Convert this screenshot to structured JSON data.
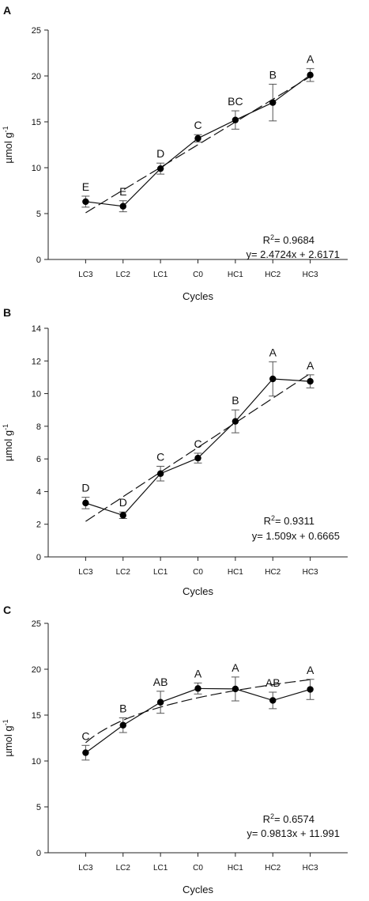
{
  "chart_data": [
    {
      "panel": "A",
      "type": "line",
      "categories": [
        "LC3",
        "LC2",
        "LC1",
        "C0",
        "HC1",
        "HC2",
        "HC3"
      ],
      "values": [
        6.3,
        5.8,
        9.9,
        13.2,
        15.2,
        17.1,
        20.1
      ],
      "errors": [
        0.6,
        0.6,
        0.6,
        0.4,
        1.0,
        2.0,
        0.7
      ],
      "letters": [
        "E",
        "E",
        "D",
        "C",
        "BC",
        "B",
        "A"
      ],
      "ylim": [
        0,
        25
      ],
      "yticks": [
        0,
        5,
        10,
        15,
        20,
        25
      ],
      "xlabel": "Cycles",
      "ylabel": "µmol g",
      "ylabel_sup": "-1",
      "fit": {
        "slope": 2.4724,
        "intercept": 2.6171
      },
      "r2_label": "R",
      "r2_sup": "2",
      "r2_value": "= 0.9684",
      "equation": "y= 2.4724x + 2.6171"
    },
    {
      "panel": "B",
      "type": "line",
      "categories": [
        "LC3",
        "LC2",
        "LC1",
        "C0",
        "HC1",
        "HC2",
        "HC3"
      ],
      "values": [
        3.3,
        2.55,
        5.1,
        6.05,
        8.3,
        10.9,
        10.75
      ],
      "errors": [
        0.35,
        0.2,
        0.45,
        0.3,
        0.7,
        1.05,
        0.4
      ],
      "letters": [
        "D",
        "D",
        "C",
        "C",
        "B",
        "A",
        "A"
      ],
      "ylim": [
        0,
        14
      ],
      "yticks": [
        0,
        2,
        4,
        6,
        8,
        10,
        12,
        14
      ],
      "xlabel": "Cycles",
      "ylabel": "µmol g",
      "ylabel_sup": "-1",
      "fit": {
        "slope": 1.509,
        "intercept": 0.6665
      },
      "r2_label": "R",
      "r2_sup": "2",
      "r2_value": "= 0.9311",
      "equation": "y= 1.509x + 0.6665"
    },
    {
      "panel": "C",
      "type": "line",
      "categories": [
        "LC3",
        "LC2",
        "LC1",
        "C0",
        "HC1",
        "HC2",
        "HC3"
      ],
      "values": [
        10.9,
        13.9,
        16.4,
        17.9,
        17.85,
        16.6,
        17.8
      ],
      "errors": [
        0.8,
        0.8,
        1.2,
        0.6,
        1.3,
        0.9,
        1.1
      ],
      "letters": [
        "C",
        "B",
        "AB",
        "A",
        "A",
        "AB",
        "A"
      ],
      "ylim": [
        0,
        25
      ],
      "yticks": [
        0,
        5,
        10,
        15,
        20,
        25
      ],
      "xlabel": "Cycles",
      "ylabel": "µmol g",
      "ylabel_sup": "-1",
      "fit": {
        "slope": 0.9813,
        "intercept": 11.991,
        "model": "logarithmic"
      },
      "r2_label": "R",
      "r2_sup": "2",
      "r2_value": "= 0.6574",
      "equation": "y= 0.9813x + 11.991"
    }
  ],
  "colors": {
    "axis": "#222222",
    "line": "#111111",
    "marker": "#000000",
    "errorbar": "#555555"
  }
}
